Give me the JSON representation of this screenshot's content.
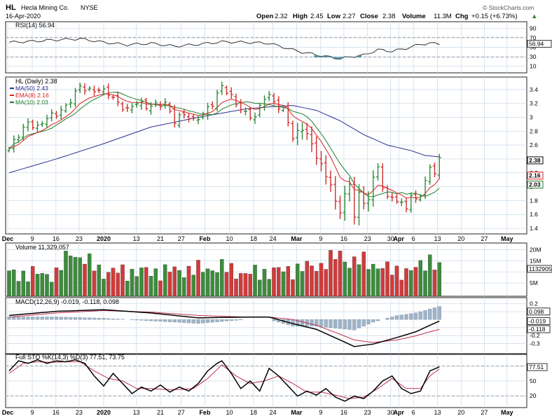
{
  "header": {
    "symbol": "HL",
    "company": "Hecla Mining Co.",
    "exchange": "NYSE",
    "date": "16-Apr-2020",
    "watermark": "© StockCharts.com",
    "quote": {
      "open_label": "Open",
      "open": "2.32",
      "high_label": "High",
      "high": "2.45",
      "low_label": "Low",
      "low": "2.27",
      "close_label": "Close",
      "close": "2.38",
      "volume_label": "Volume",
      "volume": "11.3M",
      "chg_label": "Chg",
      "chg": "+0.15 (+6.73%)",
      "chg_arrow": "▲"
    }
  },
  "colors": {
    "up": "#2e8b3a",
    "down": "#d22e2e",
    "ma50": "#2b2f8f",
    "ema8": "#d92020",
    "ma10": "#1e7d2a",
    "grid": "#c8d8e8",
    "panel_bg": "#eef3f8"
  },
  "x_axis": {
    "labels": [
      {
        "t": "Dec",
        "d": -0.3,
        "bold": true
      },
      {
        "t": "9",
        "d": 4.9
      },
      {
        "t": "16",
        "d": 9.9
      },
      {
        "t": "23",
        "d": 14.8
      },
      {
        "t": "2020",
        "d": 20,
        "bold": true
      },
      {
        "t": "13",
        "d": 26.9
      },
      {
        "t": "21",
        "d": 32.0
      },
      {
        "t": "27",
        "d": 36.4
      },
      {
        "t": "Feb",
        "d": 41.4,
        "bold": true
      },
      {
        "t": "10",
        "d": 46.6
      },
      {
        "t": "18",
        "d": 51.7
      },
      {
        "t": "24",
        "d": 55.8
      },
      {
        "t": "Mar",
        "d": 60.8,
        "bold": true
      },
      {
        "t": "9",
        "d": 65.9
      },
      {
        "t": "16",
        "d": 70.8
      },
      {
        "t": "23",
        "d": 75.8
      },
      {
        "t": "30",
        "d": 80.7
      },
      {
        "t": "Apr",
        "d": 82.4,
        "bold": true
      },
      {
        "t": "6",
        "d": 85.5
      },
      {
        "t": "13",
        "d": 90.6
      },
      {
        "t": "20",
        "d": 95.6
      },
      {
        "t": "27",
        "d": 100.5
      },
      {
        "t": "May",
        "d": 105.3,
        "bold": true
      }
    ],
    "n_bars": 92
  },
  "chart_data": [
    {
      "type": "line",
      "panel": "RSI",
      "title": "RSI(14) 56.94",
      "ylim": [
        0,
        100
      ],
      "ticks": [
        90,
        70,
        50,
        30,
        10
      ],
      "current": "56.94",
      "key_x": [
        0,
        5,
        10,
        15,
        20,
        25,
        30,
        35,
        40,
        45,
        50,
        55,
        60,
        62,
        65,
        68,
        70,
        73,
        75,
        78,
        81,
        84,
        87,
        89,
        91
      ],
      "key_y": [
        60,
        62,
        65,
        67,
        60,
        55,
        58,
        52,
        56,
        61,
        60,
        58,
        45,
        40,
        35,
        30,
        27,
        32,
        34,
        45,
        42,
        48,
        56,
        58,
        57
      ]
    },
    {
      "type": "ohlc",
      "panel": "Price",
      "title": "HL (Daily) 2.38",
      "ylim": [
        1.35,
        3.55
      ],
      "ticks": [
        3.4,
        3.2,
        3.0,
        2.8,
        2.6,
        2.4,
        2.2,
        2.0,
        1.8,
        1.6,
        1.4
      ],
      "legend": [
        {
          "name": "MA(50) 2.43",
          "color": "#2b2f8f"
        },
        {
          "name": "EMA(8) 2.16",
          "color": "#d92020"
        },
        {
          "name": "MA(10) 2.03",
          "color": "#1e7d2a"
        }
      ],
      "value_labels": {
        "close": "2.38",
        "ema": "2.16",
        "ma10": "2.03"
      },
      "close_key_x": [
        0,
        2,
        4,
        6,
        8,
        10,
        12,
        14,
        15,
        17,
        19,
        21,
        23,
        25,
        27,
        29,
        31,
        33,
        35,
        37,
        39,
        41,
        43,
        45,
        46,
        48,
        50,
        52,
        54,
        55,
        57,
        58,
        59,
        60,
        62,
        63,
        64,
        66,
        67,
        68,
        69,
        70,
        71,
        72,
        73,
        74,
        75,
        76,
        77,
        78,
        79,
        80,
        81,
        82,
        83,
        84,
        85,
        86,
        87,
        88,
        89,
        90,
        91
      ],
      "close_key_y": [
        2.55,
        2.75,
        2.92,
        2.85,
        3.0,
        3.05,
        3.15,
        3.35,
        3.45,
        3.38,
        3.4,
        3.35,
        3.2,
        3.1,
        3.22,
        3.15,
        3.18,
        3.2,
        2.95,
        3.05,
        2.95,
        3.05,
        3.2,
        3.45,
        3.38,
        3.2,
        3.05,
        3.0,
        3.3,
        3.3,
        3.15,
        3.1,
        2.95,
        2.7,
        2.85,
        2.75,
        2.6,
        2.3,
        2.15,
        2.05,
        1.75,
        1.65,
        1.9,
        2.0,
        1.6,
        1.9,
        1.75,
        1.85,
        2.1,
        2.3,
        2.0,
        1.82,
        1.88,
        1.78,
        1.75,
        1.72,
        1.85,
        1.82,
        1.9,
        2.05,
        2.3,
        2.2,
        2.38
      ],
      "ma50_key_x": [
        0,
        10,
        20,
        30,
        40,
        50,
        55,
        60,
        65,
        70,
        75,
        80,
        85,
        88,
        91
      ],
      "ma50_key_y": [
        2.2,
        2.4,
        2.62,
        2.86,
        3.0,
        3.12,
        3.15,
        3.17,
        3.1,
        2.95,
        2.75,
        2.6,
        2.52,
        2.45,
        2.43
      ],
      "volume_scale": "M"
    },
    {
      "type": "bar",
      "panel": "Volume",
      "title": "Volume 11,329,057",
      "ylim": [
        0,
        22000000
      ],
      "ticks": [
        20000000,
        15000000,
        10000000,
        5000000
      ],
      "tick_labels": [
        "20M",
        "15M",
        "",
        "5M"
      ],
      "current": "11329057",
      "key_x": [
        0,
        10,
        13,
        20,
        30,
        40,
        45,
        50,
        60,
        66,
        70,
        72,
        75,
        80,
        85,
        89,
        91
      ],
      "key_y": [
        9,
        9,
        19,
        10,
        10,
        11,
        12,
        9,
        11,
        13,
        18,
        14,
        15,
        11,
        10,
        16,
        11
      ]
    },
    {
      "type": "line",
      "panel": "MACD",
      "title": "MACD(12,26,9) -0.019, -0.118, 0.098",
      "macd": "-0.019",
      "signal": "-0.118",
      "histogram": "0.098",
      "ylim": [
        -0.4,
        0.25
      ],
      "ticks": [
        0.2,
        0.1,
        -0.1,
        -0.2,
        -0.3
      ],
      "macd_key_x": [
        0,
        10,
        20,
        30,
        40,
        50,
        55,
        60,
        65,
        70,
        73,
        77,
        82,
        86,
        89,
        91
      ],
      "macd_key_y": [
        0.05,
        0.1,
        0.12,
        0.08,
        0.02,
        0.03,
        0.03,
        -0.05,
        -0.12,
        -0.25,
        -0.33,
        -0.3,
        -0.22,
        -0.15,
        -0.07,
        -0.02
      ],
      "signal_key_x": [
        0,
        10,
        20,
        30,
        40,
        50,
        55,
        60,
        65,
        70,
        73,
        77,
        82,
        86,
        89,
        91
      ],
      "signal_key_y": [
        0.03,
        0.08,
        0.11,
        0.09,
        0.05,
        0.03,
        0.03,
        0.0,
        -0.07,
        -0.18,
        -0.25,
        -0.28,
        -0.25,
        -0.2,
        -0.15,
        -0.12
      ]
    },
    {
      "type": "line",
      "panel": "Stochastic",
      "title": "Full STO %K(14,3) %D(3) 77.51, 73.75",
      "k": "77.51",
      "d": "73.75",
      "ylim": [
        0,
        100
      ],
      "ticks": [
        80,
        50,
        20
      ],
      "k_key_x": [
        0,
        2,
        4,
        6,
        8,
        10,
        12,
        14,
        16,
        18,
        20,
        22,
        24,
        26,
        28,
        30,
        32,
        34,
        36,
        38,
        40,
        42,
        44,
        45,
        47,
        49,
        51,
        53,
        55,
        57,
        59,
        61,
        63,
        65,
        67,
        69,
        71,
        73,
        75,
        77,
        79,
        81,
        83,
        85,
        87,
        89,
        91
      ],
      "k_key_y": [
        70,
        90,
        85,
        92,
        85,
        90,
        88,
        92,
        85,
        60,
        40,
        65,
        45,
        25,
        38,
        30,
        42,
        28,
        38,
        30,
        45,
        70,
        85,
        90,
        65,
        35,
        50,
        30,
        75,
        60,
        40,
        20,
        30,
        22,
        35,
        18,
        10,
        20,
        15,
        30,
        50,
        60,
        35,
        25,
        30,
        70,
        78
      ],
      "d_key_x": [
        0,
        3,
        6,
        9,
        12,
        15,
        18,
        21,
        24,
        27,
        30,
        33,
        36,
        39,
        42,
        45,
        48,
        51,
        54,
        57,
        60,
        63,
        66,
        69,
        72,
        75,
        78,
        81,
        84,
        87,
        89,
        91
      ],
      "d_key_y": [
        65,
        85,
        88,
        87,
        88,
        88,
        70,
        55,
        50,
        35,
        35,
        33,
        33,
        35,
        55,
        82,
        60,
        45,
        50,
        60,
        45,
        28,
        28,
        22,
        15,
        18,
        35,
        55,
        35,
        35,
        60,
        74
      ]
    }
  ]
}
